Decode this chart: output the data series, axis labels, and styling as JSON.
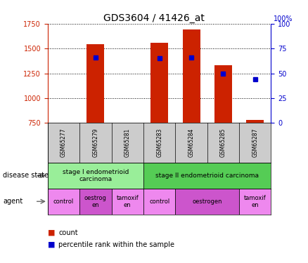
{
  "title": "GDS3604 / 41426_at",
  "samples": [
    "GSM65277",
    "GSM65279",
    "GSM65281",
    "GSM65283",
    "GSM65284",
    "GSM65285",
    "GSM65287"
  ],
  "counts": [
    null,
    1540,
    null,
    1560,
    1690,
    1330,
    780
  ],
  "percentile_ranks": [
    null,
    66,
    null,
    65,
    66,
    50,
    44
  ],
  "ylim_left": [
    750,
    1750
  ],
  "ylim_right": [
    0,
    100
  ],
  "yticks_left": [
    750,
    1000,
    1250,
    1500,
    1750
  ],
  "yticks_right": [
    0,
    25,
    50,
    75,
    100
  ],
  "disease_states": [
    {
      "label": "stage I endometrioid\ncarcinoma",
      "start": 0,
      "end": 3,
      "color": "#99ee99"
    },
    {
      "label": "stage II endometrioid carcinoma",
      "start": 3,
      "end": 7,
      "color": "#55cc55"
    }
  ],
  "agents": [
    {
      "label": "control",
      "start": 0,
      "end": 1,
      "color": "#ee88ee"
    },
    {
      "label": "oestrog\nen",
      "start": 1,
      "end": 2,
      "color": "#cc55cc"
    },
    {
      "label": "tamoxif\nen",
      "start": 2,
      "end": 3,
      "color": "#ee88ee"
    },
    {
      "label": "control",
      "start": 3,
      "end": 4,
      "color": "#ee88ee"
    },
    {
      "label": "oestrogen",
      "start": 4,
      "end": 6,
      "color": "#cc55cc"
    },
    {
      "label": "tamoxif\nen",
      "start": 6,
      "end": 7,
      "color": "#ee88ee"
    }
  ],
  "bar_color": "#cc2200",
  "dot_color": "#0000cc",
  "left_axis_color": "#cc2200",
  "right_axis_color": "#0000cc",
  "background_color": "#ffffff",
  "sample_box_color": "#cccccc"
}
